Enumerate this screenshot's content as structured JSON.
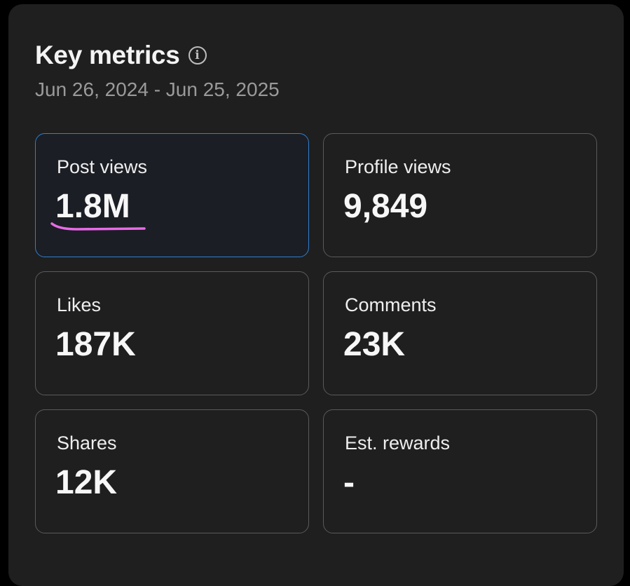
{
  "header": {
    "title": "Key metrics",
    "date_range": "Jun 26, 2024 - Jun 25, 2025"
  },
  "metrics": [
    {
      "label": "Post views",
      "value": "1.8M"
    },
    {
      "label": "Profile views",
      "value": "9,849"
    },
    {
      "label": "Likes",
      "value": "187K"
    },
    {
      "label": "Comments",
      "value": "23K"
    },
    {
      "label": "Shares",
      "value": "12K"
    },
    {
      "label": "Est. rewards",
      "value": "-"
    }
  ],
  "colors": {
    "selected_border": "#2f7fd0",
    "annotation": "#e86ae8"
  }
}
